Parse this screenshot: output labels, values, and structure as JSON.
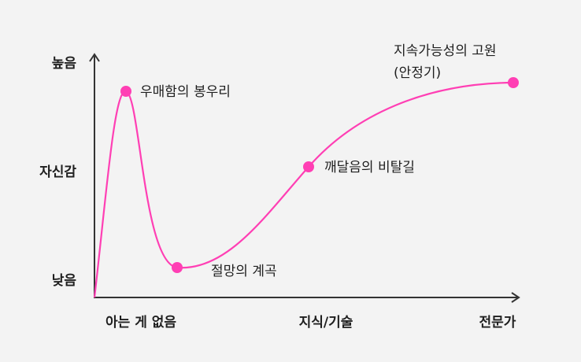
{
  "diagram": {
    "y_axis": {
      "high": "높음",
      "middle": "자신감",
      "low": "낮음"
    },
    "x_axis": {
      "start": "아는 게 없음",
      "middle": "지식/기술",
      "end": "전문가"
    },
    "points": [
      {
        "label": "우매함의 봉우리"
      },
      {
        "label": "절망의 계곡"
      },
      {
        "label": "깨달음의 비탈길"
      },
      {
        "label_line1": "지속가능성의 고원",
        "label_line2": "(안정기)"
      }
    ],
    "colors": {
      "curve": "#ff3fb4",
      "point": "#ff3fb4",
      "axis": "#333333",
      "background": "#f3f3f3"
    }
  }
}
